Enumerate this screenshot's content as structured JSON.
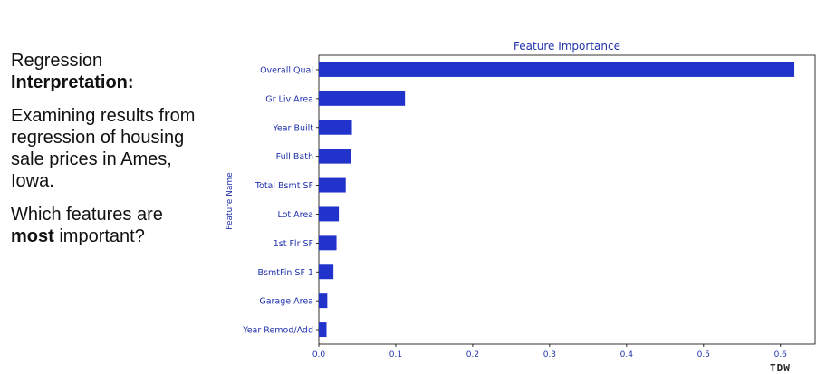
{
  "left_panel": {
    "heading_line1": "Regression",
    "heading_line2": "Interpretation:",
    "para1": "Examining results from regression of housing sale prices in Ames, Iowa.",
    "para2_prefix": "Which features are",
    "para2_bold": "most",
    "para2_suffix": "important?"
  },
  "colors": {
    "bar": "#2233cc",
    "text": "#2233aa"
  },
  "chart_data": {
    "type": "bar",
    "orientation": "horizontal",
    "title": "Feature Importance",
    "xlabel": "",
    "ylabel": "Feature Name",
    "categories": [
      "Overall Qual",
      "Gr Liv Area",
      "Year Built",
      "Full Bath",
      "Total Bsmt SF",
      "Lot Area",
      "1st Flr SF",
      "BsmtFin SF 1",
      "Garage Area",
      "Year Remod/Add"
    ],
    "values": [
      0.618,
      0.112,
      0.043,
      0.042,
      0.035,
      0.026,
      0.023,
      0.019,
      0.011,
      0.01
    ],
    "xlim": [
      0.0,
      0.645
    ],
    "xticks": [
      0.0,
      0.1,
      0.2,
      0.3,
      0.4,
      0.5,
      0.6
    ],
    "xtick_labels": [
      "0.0",
      "0.1",
      "0.2",
      "0.3",
      "0.4",
      "0.5",
      "0.6"
    ],
    "grid": false
  },
  "logo_text": "TDW"
}
